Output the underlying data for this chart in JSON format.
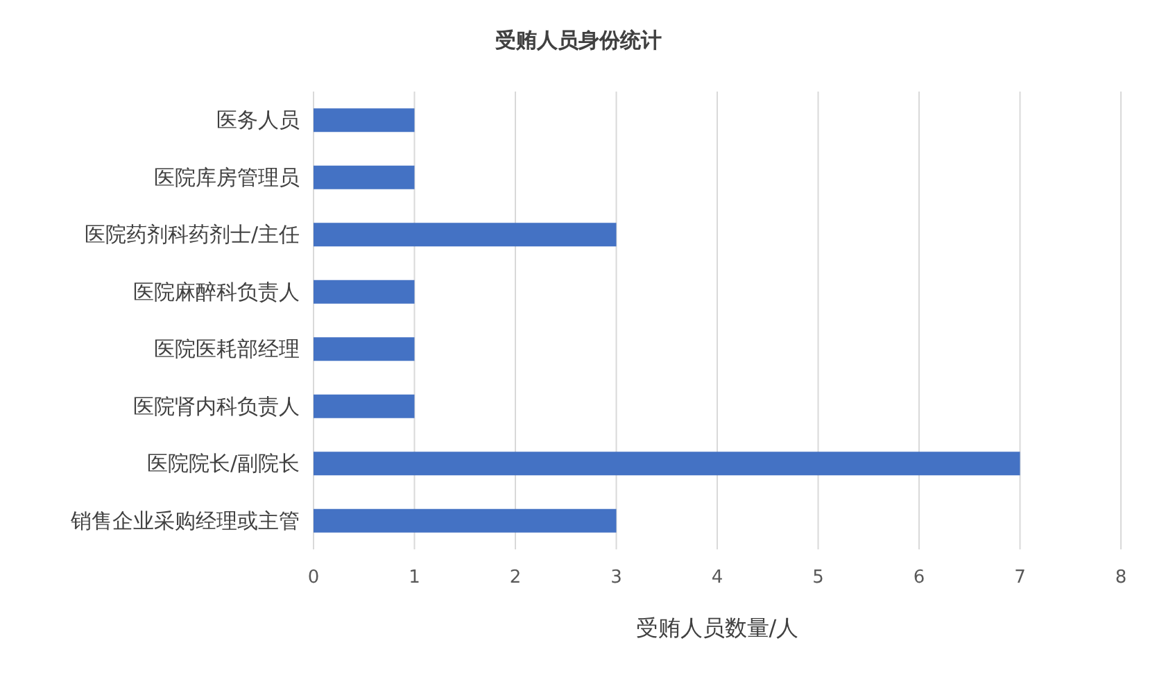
{
  "chart_data": {
    "type": "bar",
    "orientation": "horizontal",
    "title": "受贿人员身份统计",
    "xlabel": "受贿人员数量/人",
    "categories": [
      "医务人员",
      "医院库房管理员",
      "医院药剂科药剂士/主任",
      "医院麻醉科负责人",
      "医院医耗部经理",
      "医院肾内科负责人",
      "医院院长/副院长",
      "销售企业采购经理或主管"
    ],
    "values": [
      1,
      1,
      3,
      1,
      1,
      1,
      7,
      3
    ],
    "color": "#4472c4",
    "xlim": [
      0,
      8
    ],
    "xticks": [
      0,
      1,
      2,
      3,
      4,
      5,
      6,
      7,
      8
    ],
    "grid": "x"
  }
}
